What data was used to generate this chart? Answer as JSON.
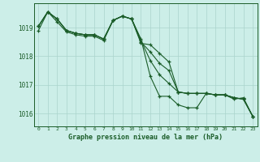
{
  "title": "Graphe pression niveau de la mer (hPa)",
  "background_color": "#cceee8",
  "grid_color": "#aad4cc",
  "line_color": "#1a5c28",
  "border_color": "#1a5c28",
  "xlim": [
    -0.5,
    23.5
  ],
  "ylim": [
    1015.55,
    1019.85
  ],
  "yticks": [
    1016,
    1017,
    1018,
    1019
  ],
  "xticks": [
    0,
    1,
    2,
    3,
    4,
    5,
    6,
    7,
    8,
    9,
    10,
    11,
    12,
    13,
    14,
    15,
    16,
    17,
    18,
    19,
    20,
    21,
    22,
    23
  ],
  "series": {
    "s1": [
      1019.05,
      1019.55,
      1019.3,
      1018.9,
      1018.8,
      1018.75,
      1018.75,
      1018.6,
      1019.25,
      1019.4,
      1019.3,
      1018.6,
      1017.3,
      1016.6,
      1016.6,
      1016.3,
      1016.2,
      1016.2,
      1016.7,
      1016.65,
      1016.65,
      1016.5,
      1016.55,
      1015.9
    ],
    "s2": [
      1019.05,
      1019.55,
      1019.3,
      1018.9,
      1018.8,
      1018.75,
      1018.75,
      1018.6,
      1019.25,
      1019.4,
      1019.3,
      1018.55,
      1017.85,
      1017.35,
      1017.05,
      1016.75,
      1016.7,
      1016.7,
      1016.7,
      1016.65,
      1016.65,
      1016.55,
      1016.5,
      1015.9
    ],
    "s3": [
      1019.05,
      1019.55,
      1019.3,
      1018.9,
      1018.8,
      1018.75,
      1018.75,
      1018.6,
      1019.25,
      1019.4,
      1019.3,
      1018.5,
      1018.15,
      1017.75,
      1017.5,
      1016.75,
      1016.7,
      1016.7,
      1016.7,
      1016.65,
      1016.65,
      1016.55,
      1016.5,
      1015.9
    ],
    "s4": [
      1018.9,
      1019.55,
      1019.2,
      1018.85,
      1018.75,
      1018.7,
      1018.7,
      1018.55,
      1019.25,
      1019.4,
      1019.3,
      1018.45,
      1018.4,
      1018.1,
      1017.8,
      1016.75,
      1016.7,
      1016.7,
      1016.7,
      1016.65,
      1016.65,
      1016.55,
      1016.5,
      1015.9
    ]
  }
}
